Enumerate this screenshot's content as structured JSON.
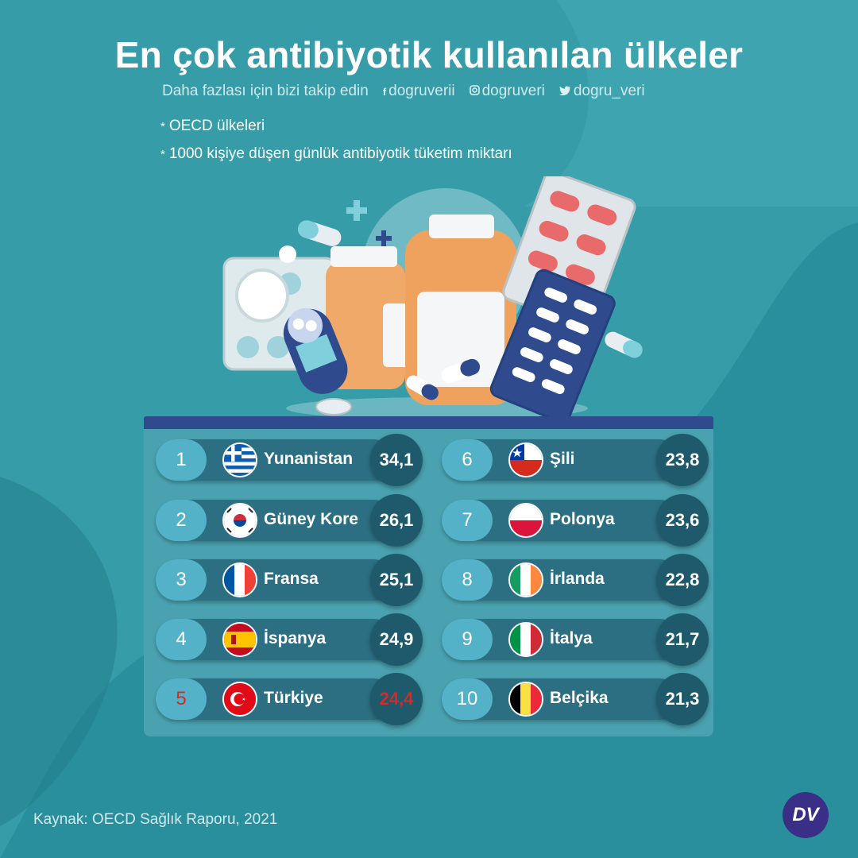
{
  "title": "En çok antibiyotik kullanılan ülkeler",
  "follow": {
    "text": "Daha fazlası için bizi takip edin",
    "facebook": "dogruverii",
    "instagram": "dogruveri",
    "twitter": "dogru_veri",
    "facebook_icon": "facebook-icon",
    "instagram_icon": "instagram-icon",
    "twitter_icon": "twitter-icon"
  },
  "notes": [
    "OECD ülkeleri",
    "1000 kişiye düşen günlük antibiyotik tüketim miktarı"
  ],
  "highlight_color": "#d42a2a",
  "ranking": [
    {
      "rank": "1",
      "country": "Yunanistan",
      "value": "34,1",
      "flag": "greece-flag"
    },
    {
      "rank": "2",
      "country": "Güney Kore",
      "value": "26,1",
      "flag": "south-korea-flag"
    },
    {
      "rank": "3",
      "country": "Fransa",
      "value": "25,1",
      "flag": "france-flag"
    },
    {
      "rank": "4",
      "country": "İspanya",
      "value": "24,9",
      "flag": "spain-flag"
    },
    {
      "rank": "5",
      "country": "Türkiye",
      "value": "24,4",
      "flag": "turkey-flag",
      "highlight": true
    },
    {
      "rank": "6",
      "country": "Şili",
      "value": "23,8",
      "flag": "chile-flag"
    },
    {
      "rank": "7",
      "country": "Polonya",
      "value": "23,6",
      "flag": "poland-flag"
    },
    {
      "rank": "8",
      "country": "İrlanda",
      "value": "22,8",
      "flag": "ireland-flag"
    },
    {
      "rank": "9",
      "country": "İtalya",
      "value": "21,7",
      "flag": "italy-flag"
    },
    {
      "rank": "10",
      "country": "Belçika",
      "value": "21,3",
      "flag": "belgium-flag"
    }
  ],
  "source": "Kaynak: OECD Sağlık Raporu, 2021",
  "logo": "DV"
}
